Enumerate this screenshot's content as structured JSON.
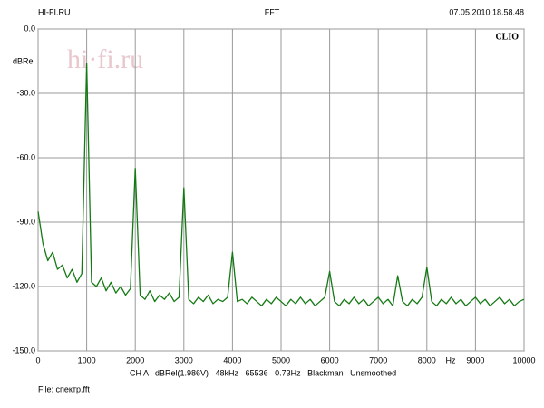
{
  "header_left": "HI-FI.RU",
  "header_center": "FFT",
  "header_right": "07.05.2010 18.58.48",
  "brand": "CLIO",
  "watermark": "hi·fi.ru",
  "footer": "CH A   dBRel(1.986V)   48kHz   65536   0.73Hz   Blackman   Unsmoothed",
  "file": "File: спектр.fft",
  "chart_data": {
    "type": "line",
    "ylabel": "dBRel",
    "xlabel": "Hz",
    "xlim": [
      0,
      10000
    ],
    "xticks": [
      0,
      1000,
      2000,
      3000,
      4000,
      5000,
      6000,
      7000,
      8000,
      9000,
      10000
    ],
    "ylim": [
      -150,
      0
    ],
    "yticks": [
      {
        "value": 0,
        "label": "0.0"
      },
      {
        "value": -30,
        "label": "-30.0"
      },
      {
        "value": -60,
        "label": "-60.0"
      },
      {
        "value": -90,
        "label": "-90.0"
      },
      {
        "value": -120,
        "label": "-120.0"
      },
      {
        "value": -150,
        "label": "-150.0"
      }
    ],
    "grid": true,
    "x": [
      0,
      100,
      200,
      300,
      400,
      500,
      600,
      700,
      800,
      900,
      1000,
      1100,
      1200,
      1300,
      1400,
      1500,
      1600,
      1700,
      1800,
      1900,
      2000,
      2100,
      2200,
      2300,
      2400,
      2500,
      2600,
      2700,
      2800,
      2900,
      3000,
      3100,
      3200,
      3300,
      3400,
      3500,
      3600,
      3700,
      3800,
      3900,
      4000,
      4100,
      4200,
      4300,
      4400,
      4500,
      4600,
      4700,
      4800,
      4900,
      5000,
      5100,
      5200,
      5300,
      5400,
      5500,
      5600,
      5700,
      5800,
      5900,
      6000,
      6100,
      6200,
      6300,
      6400,
      6500,
      6600,
      6700,
      6800,
      6900,
      7000,
      7100,
      7200,
      7300,
      7400,
      7500,
      7600,
      7700,
      7800,
      7900,
      8000,
      8100,
      8200,
      8300,
      8400,
      8500,
      8600,
      8700,
      8800,
      8900,
      9000,
      9100,
      9200,
      9300,
      9400,
      9500,
      9600,
      9700,
      9800,
      9900,
      10000
    ],
    "series": [
      {
        "color": "#137a13",
        "values": [
          -85,
          -100,
          -108,
          -104,
          -112,
          -110,
          -116,
          -112,
          -118,
          -114,
          -16,
          -118,
          -120,
          -116,
          -122,
          -118,
          -123,
          -120,
          -124,
          -121,
          -65,
          -124,
          -126,
          -122,
          -127,
          -124,
          -126,
          -123,
          -127,
          -125,
          -74,
          -126,
          -128,
          -125,
          -127,
          -124,
          -128,
          -126,
          -127,
          -125,
          -104,
          -127,
          -126,
          -128,
          -125,
          -127,
          -129,
          -126,
          -128,
          -125,
          -127,
          -129,
          -126,
          -128,
          -125,
          -128,
          -126,
          -129,
          -127,
          -125,
          -113,
          -127,
          -129,
          -126,
          -128,
          -125,
          -128,
          -126,
          -129,
          -127,
          -125,
          -128,
          -126,
          -129,
          -115,
          -127,
          -129,
          -126,
          -128,
          -125,
          -111,
          -127,
          -129,
          -126,
          -128,
          -125,
          -128,
          -126,
          -129,
          -127,
          -125,
          -128,
          -126,
          -129,
          -127,
          -125,
          -128,
          -126,
          -129,
          -127,
          -126
        ]
      }
    ]
  }
}
